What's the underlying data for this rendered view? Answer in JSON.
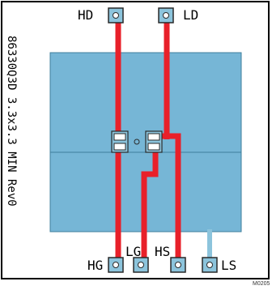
{
  "colors": {
    "board_fill": "#76b6d6",
    "board_stroke": "#3f7f9c",
    "trace": "#e8202a",
    "trace_light": "#8cc4dc",
    "pad_fill": "#8cc4dc",
    "pad_stroke": "#2a2a2a",
    "frame": "#000000"
  },
  "pins": {
    "hd": "HD",
    "ld": "LD",
    "hg": "HG",
    "lg": "LG",
    "hs": "HS",
    "ls": "LS"
  },
  "side_label": "86330Q3D 3.3x3.3 MIN Rev0",
  "figure_id": "M0205"
}
